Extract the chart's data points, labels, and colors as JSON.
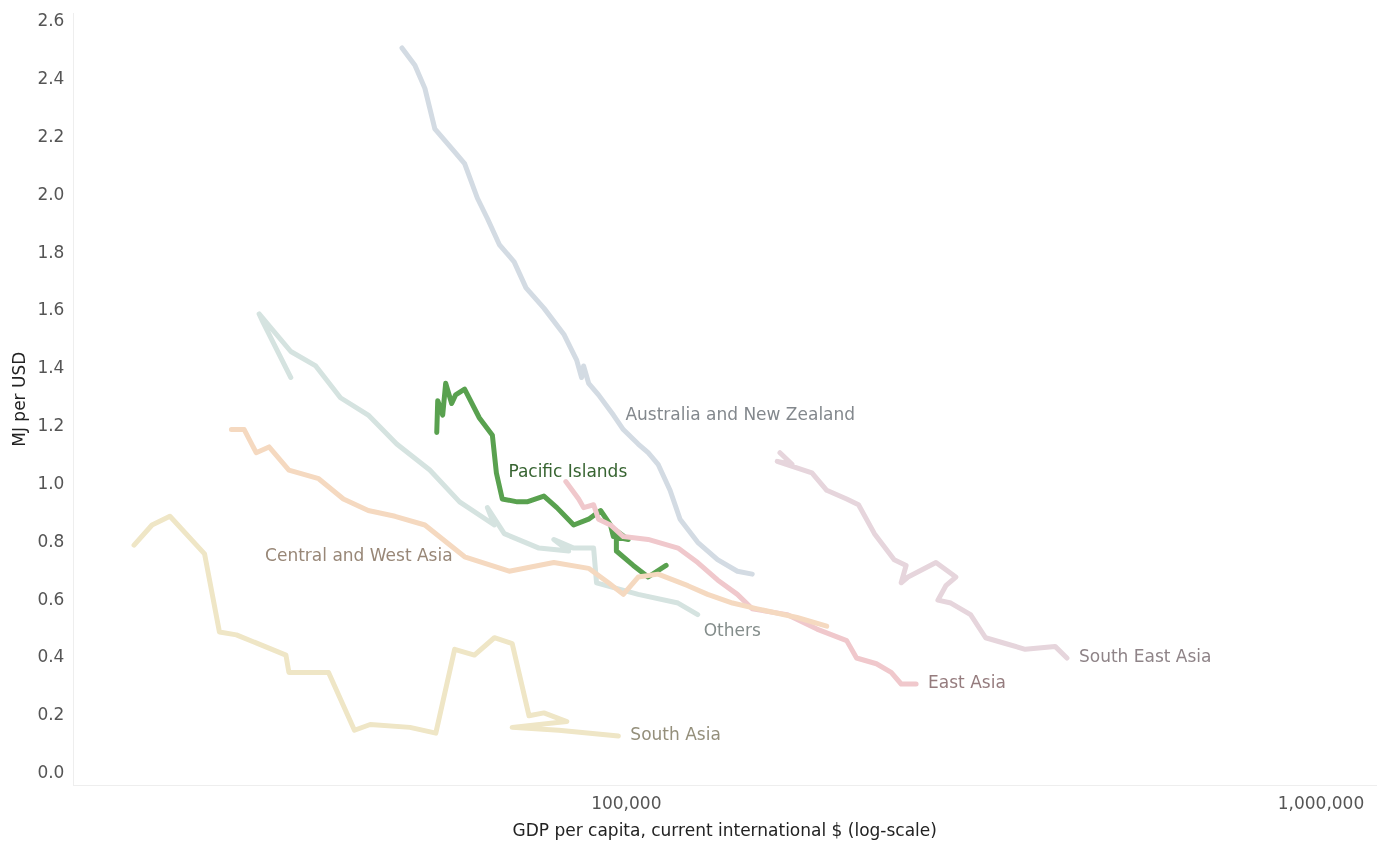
{
  "chart_data": {
    "type": "line",
    "xlabel": "GDP per capita, current international $ (log-scale)",
    "ylabel": "MJ per USD",
    "log": "x",
    "grid": false,
    "legend": false,
    "marker": "none",
    "line_style": "solid",
    "xlim": [
      16000,
      1200000
    ],
    "xticks": [
      {
        "value": 100000,
        "label": "100,000"
      },
      {
        "value": 1000000,
        "label": "1,000,000"
      }
    ],
    "ylim": [
      -0.04,
      2.63
    ],
    "yticks": [
      {
        "value": 0,
        "label": "0.0"
      },
      {
        "value": 0.2,
        "label": "0.2"
      },
      {
        "value": 0.4,
        "label": "0.4"
      },
      {
        "value": 0.6,
        "label": "0.6"
      },
      {
        "value": 0.8,
        "label": "0.8"
      },
      {
        "value": 1,
        "label": "1.0"
      },
      {
        "value": 1.2,
        "label": "1.2"
      },
      {
        "value": 1.4,
        "label": "1.4"
      },
      {
        "value": 1.6,
        "label": "1.6"
      },
      {
        "value": 1.8,
        "label": "1.8"
      },
      {
        "value": 2,
        "label": "2.0"
      },
      {
        "value": 2.2,
        "label": "2.2"
      },
      {
        "value": 2.4,
        "label": "2.4"
      },
      {
        "value": 2.6,
        "label": "2.6"
      }
    ],
    "series": [
      {
        "name": "South Asia",
        "color": "#efe6c6",
        "x": [
          19560,
          20760,
          22030,
          24710,
          25960,
          27460,
          32360,
          32680,
          37270,
          40610,
          42790,
          48820,
          53180,
          56610,
          60440,
          64570,
          68500,
          72440,
          76100,
          82100,
          68500,
          79960,
          97400
        ],
        "values": [
          0.79,
          0.86,
          0.89,
          0.76,
          0.49,
          0.48,
          0.41,
          0.35,
          0.35,
          0.15,
          0.17,
          0.16,
          0.14,
          0.43,
          0.41,
          0.47,
          0.45,
          0.2,
          0.21,
          0.18,
          0.16,
          0.15,
          0.13
        ]
      },
      {
        "name": "Central and West Asia",
        "color": "#f5d9c0",
        "x": [
          27010,
          28180,
          29320,
          30600,
          32680,
          36070,
          39150,
          42510,
          46460,
          51290,
          58510,
          67820,
          78650,
          88260,
          94250,
          99010,
          104020,
          111100,
          122640,
          130950,
          142200,
          154400,
          176100,
          194300
        ],
        "values": [
          1.19,
          1.19,
          1.11,
          1.13,
          1.05,
          1.02,
          0.95,
          0.91,
          0.89,
          0.86,
          0.75,
          0.7,
          0.73,
          0.71,
          0.66,
          0.62,
          0.68,
          0.69,
          0.65,
          0.62,
          0.59,
          0.57,
          0.54,
          0.51
        ]
      },
      {
        "name": "Others",
        "color": "#d5e3e0",
        "x": [
          32890,
          30010,
          29610,
          32890,
          35720,
          38770,
          42510,
          46720,
          52130,
          57540,
          64570,
          63100,
          66730,
          74860,
          82630,
          78650,
          84000,
          89730,
          90600,
          104020,
          118700,
          126700
        ],
        "values": [
          1.37,
          1.56,
          1.59,
          1.46,
          1.41,
          1.3,
          1.24,
          1.14,
          1.05,
          0.94,
          0.86,
          0.92,
          0.83,
          0.78,
          0.77,
          0.81,
          0.78,
          0.78,
          0.66,
          0.62,
          0.59,
          0.55
        ]
      },
      {
        "name": "Australia and New Zealand",
        "color": "#d3dbe3",
        "x": [
          47540,
          49620,
          51290,
          53010,
          56610,
          58510,
          61050,
          63100,
          65640,
          68950,
          71720,
          76100,
          81280,
          84830,
          86220,
          86800,
          88260,
          91200,
          95810,
          99010,
          104020,
          107500,
          111100,
          115600,
          119500,
          126700,
          135300,
          144500,
          151800
        ],
        "values": [
          2.51,
          2.45,
          2.37,
          2.23,
          2.15,
          2.11,
          1.99,
          1.92,
          1.83,
          1.77,
          1.68,
          1.61,
          1.52,
          1.43,
          1.37,
          1.41,
          1.35,
          1.31,
          1.24,
          1.19,
          1.14,
          1.11,
          1.07,
          0.98,
          0.88,
          0.8,
          0.74,
          0.7,
          0.69
        ]
      },
      {
        "name": "East Asia",
        "color": "#f0c8cc",
        "x": [
          81830,
          85390,
          86800,
          89730,
          91200,
          94870,
          99010,
          107500,
          118700,
          126700,
          135300,
          144500,
          151800,
          170300,
          188100,
          207600,
          214500,
          229100,
          240600,
          248700,
          261300
        ],
        "values": [
          1.01,
          0.95,
          0.92,
          0.93,
          0.88,
          0.86,
          0.82,
          0.81,
          0.78,
          0.73,
          0.67,
          0.62,
          0.57,
          0.55,
          0.5,
          0.46,
          0.4,
          0.38,
          0.35,
          0.31,
          0.31
        ]
      },
      {
        "name": "South East Asia",
        "color": "#e6d5dc",
        "x": [
          166400,
          173200,
          164900,
          185000,
          194300,
          207600,
          215900,
          227600,
          243000,
          252800,
          248700,
          254400,
          279100,
          298100,
          288400,
          280900,
          293200,
          313000,
          329000,
          351300,
          375200,
          414200,
          430800
        ],
        "values": [
          1.11,
          1.07,
          1.08,
          1.04,
          0.98,
          0.95,
          0.93,
          0.83,
          0.74,
          0.72,
          0.66,
          0.68,
          0.73,
          0.68,
          0.65,
          0.6,
          0.59,
          0.55,
          0.47,
          0.45,
          0.43,
          0.44,
          0.4
        ]
      },
      {
        "name": "Pacific Islands",
        "color": "#59a14f",
        "x": [
          53350,
          53520,
          54410,
          54950,
          56050,
          56790,
          58510,
          61450,
          64150,
          65010,
          66290,
          69660,
          71960,
          76100,
          79430,
          84000,
          88260,
          91820,
          94870,
          95810,
          100660,
          96760,
          96760,
          102330,
          107500,
          114100
        ],
        "values": [
          1.18,
          1.29,
          1.24,
          1.35,
          1.28,
          1.31,
          1.33,
          1.23,
          1.17,
          1.04,
          0.95,
          0.94,
          0.94,
          0.96,
          0.92,
          0.86,
          0.88,
          0.91,
          0.86,
          0.82,
          0.81,
          0.84,
          0.77,
          0.72,
          0.68,
          0.72
        ]
      }
    ]
  }
}
